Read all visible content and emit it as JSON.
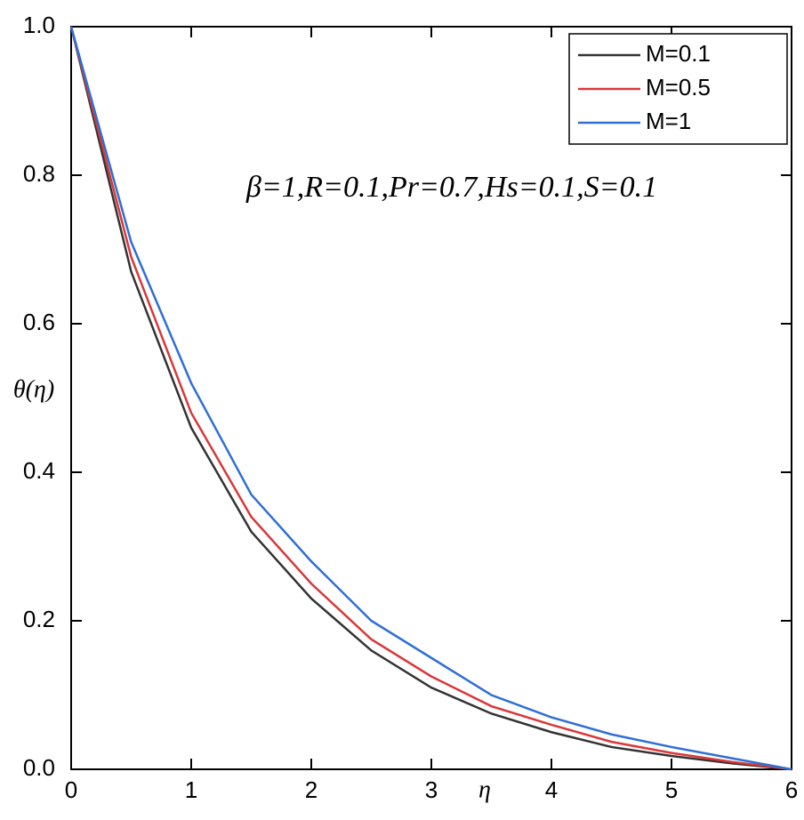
{
  "chart_data": {
    "type": "line",
    "annotation": "β=1,R=0.1,Pr=0.7,Hs=0.1,S=0.1",
    "x_label": "η",
    "y_label": "θ(η)",
    "x": [
      0,
      0.5,
      1,
      1.5,
      2,
      2.5,
      3,
      3.5,
      4,
      4.5,
      5,
      5.5,
      6
    ],
    "series": [
      {
        "name": "M=0.1",
        "color": "#333333",
        "values": [
          1.0,
          0.67,
          0.46,
          0.32,
          0.23,
          0.16,
          0.11,
          0.075,
          0.05,
          0.03,
          0.018,
          0.008,
          0
        ]
      },
      {
        "name": "M=0.5",
        "color": "#d9383a",
        "values": [
          1.0,
          0.69,
          0.48,
          0.34,
          0.25,
          0.175,
          0.125,
          0.085,
          0.06,
          0.037,
          0.022,
          0.01,
          0
        ]
      },
      {
        "name": "M=1",
        "color": "#2f6fd6",
        "values": [
          1.0,
          0.71,
          0.52,
          0.37,
          0.28,
          0.2,
          0.15,
          0.1,
          0.07,
          0.047,
          0.03,
          0.015,
          0
        ]
      }
    ],
    "xlim": [
      0,
      6
    ],
    "xticks": [
      0,
      1,
      2,
      3,
      4,
      5,
      6
    ],
    "ylim": [
      0,
      1
    ],
    "yticks": [
      {
        "value": 0,
        "label": "0.0"
      },
      0.2,
      0.4,
      0.6,
      0.8,
      {
        "value": 1,
        "label": "1.0"
      }
    ],
    "legend": "upper right"
  }
}
